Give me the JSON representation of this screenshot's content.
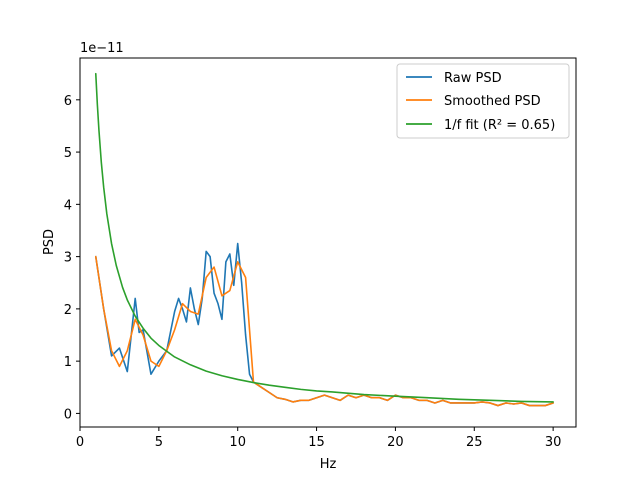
{
  "chart_data": {
    "type": "line",
    "xlabel": "Hz",
    "ylabel": "PSD",
    "y_multiplier_label": "1e−11",
    "xlim": [
      0.0,
      31.45
    ],
    "ylim": [
      -0.26,
      6.8
    ],
    "xticks": [
      0,
      5,
      10,
      15,
      20,
      25,
      30
    ],
    "yticks": [
      0,
      1,
      2,
      3,
      4,
      5,
      6
    ],
    "grid": false,
    "legend_position": "top-right",
    "legend": [
      {
        "label": "Raw PSD",
        "color": "#1f77b4"
      },
      {
        "label": "Smoothed PSD",
        "color": "#ff7f0e"
      },
      {
        "label": "1/f fit (R² = 0.65)",
        "color": "#2ca02c"
      }
    ],
    "series": [
      {
        "name": "Raw PSD",
        "color": "#1f77b4",
        "x": [
          1,
          1.5,
          2,
          2.5,
          3,
          3.25,
          3.5,
          3.75,
          4,
          4.5,
          5,
          5.5,
          6,
          6.25,
          6.5,
          6.75,
          7,
          7.25,
          7.5,
          7.75,
          8,
          8.25,
          8.5,
          8.75,
          9,
          9.25,
          9.5,
          9.75,
          10,
          10.25,
          10.5,
          10.75,
          11,
          11.5,
          12,
          12.5,
          13,
          13.5,
          14,
          14.5,
          15,
          15.5,
          16,
          16.5,
          17,
          17.5,
          18,
          18.5,
          19,
          19.5,
          20,
          20.5,
          21,
          21.5,
          22,
          22.5,
          23,
          23.5,
          24,
          24.5,
          25,
          25.5,
          26,
          26.5,
          27,
          27.5,
          28,
          28.5,
          29,
          29.5,
          30
        ],
        "values": [
          3.0,
          2.0,
          1.1,
          1.25,
          0.8,
          1.5,
          2.2,
          1.55,
          1.6,
          0.75,
          1.0,
          1.2,
          1.95,
          2.2,
          2.0,
          1.75,
          2.4,
          2.0,
          1.7,
          2.2,
          3.1,
          3.0,
          2.3,
          2.1,
          1.8,
          2.9,
          3.05,
          2.45,
          3.25,
          2.5,
          1.5,
          0.75,
          0.6,
          0.5,
          0.4,
          0.3,
          0.27,
          0.22,
          0.25,
          0.25,
          0.3,
          0.35,
          0.3,
          0.25,
          0.35,
          0.3,
          0.35,
          0.3,
          0.3,
          0.25,
          0.35,
          0.3,
          0.3,
          0.25,
          0.25,
          0.2,
          0.25,
          0.2,
          0.2,
          0.2,
          0.2,
          0.22,
          0.2,
          0.15,
          0.2,
          0.18,
          0.2,
          0.15,
          0.15,
          0.15,
          0.2
        ]
      },
      {
        "name": "Smoothed PSD",
        "color": "#ff7f0e",
        "x": [
          1,
          1.5,
          2,
          2.5,
          3,
          3.5,
          4,
          4.5,
          5,
          5.5,
          6,
          6.5,
          7,
          7.5,
          8,
          8.5,
          9,
          9.5,
          10,
          10.5,
          11,
          11.5,
          12,
          12.5,
          13,
          13.5,
          14,
          14.5,
          15,
          15.5,
          16,
          16.5,
          17,
          17.5,
          18,
          18.5,
          19,
          19.5,
          20,
          20.5,
          21,
          21.5,
          22,
          22.5,
          23,
          23.5,
          24,
          24.5,
          25,
          25.5,
          26,
          26.5,
          27,
          27.5,
          28,
          28.5,
          29,
          29.5,
          30
        ],
        "values": [
          3.0,
          2.0,
          1.2,
          0.9,
          1.2,
          1.8,
          1.5,
          1.0,
          0.9,
          1.2,
          1.6,
          2.1,
          1.95,
          1.9,
          2.6,
          2.8,
          2.25,
          2.35,
          2.9,
          2.6,
          0.6,
          0.5,
          0.4,
          0.3,
          0.27,
          0.22,
          0.25,
          0.25,
          0.3,
          0.35,
          0.3,
          0.25,
          0.35,
          0.3,
          0.35,
          0.3,
          0.3,
          0.25,
          0.35,
          0.3,
          0.3,
          0.25,
          0.25,
          0.2,
          0.25,
          0.2,
          0.2,
          0.2,
          0.2,
          0.22,
          0.2,
          0.15,
          0.2,
          0.18,
          0.2,
          0.15,
          0.15,
          0.15,
          0.2
        ]
      },
      {
        "name": "1/f fit (R² = 0.65)",
        "color": "#2ca02c",
        "x": [
          1,
          1.1,
          1.2,
          1.35,
          1.5,
          1.7,
          2,
          2.3,
          2.7,
          3,
          3.5,
          4,
          4.5,
          5,
          6,
          7,
          8,
          9,
          10,
          11,
          12,
          13,
          14,
          15,
          16,
          18,
          20,
          22,
          24,
          26,
          28,
          30
        ],
        "values": [
          6.5,
          5.91,
          5.42,
          4.81,
          4.33,
          3.82,
          3.25,
          2.83,
          2.41,
          2.17,
          1.86,
          1.63,
          1.44,
          1.3,
          1.08,
          0.93,
          0.81,
          0.72,
          0.65,
          0.59,
          0.54,
          0.5,
          0.46,
          0.43,
          0.41,
          0.36,
          0.33,
          0.3,
          0.27,
          0.25,
          0.23,
          0.22
        ]
      }
    ]
  }
}
